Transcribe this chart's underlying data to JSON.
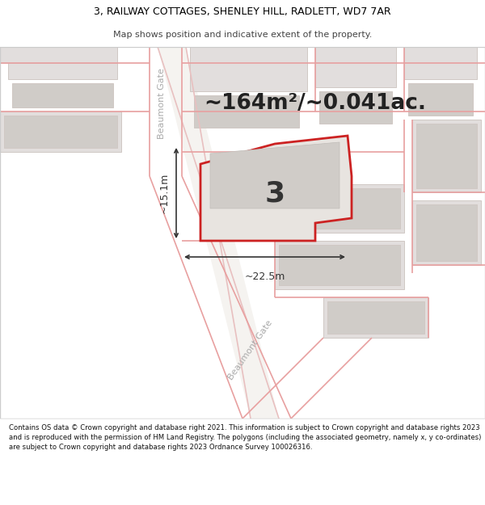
{
  "title_line1": "3, RAILWAY COTTAGES, SHENLEY HILL, RADLETT, WD7 7AR",
  "title_line2": "Map shows position and indicative extent of the property.",
  "area_text": "~164m²/~0.041ac.",
  "number_label": "3",
  "dim_width": "~22.5m",
  "dim_height": "~15.1m",
  "footer": "Contains OS data © Crown copyright and database right 2021. This information is subject to Crown copyright and database rights 2023 and is reproduced with the permission of HM Land Registry. The polygons (including the associated geometry, namely x, y co-ordinates) are subject to Crown copyright and database rights 2023 Ordnance Survey 100026316.",
  "bg_color": "#ffffff",
  "map_bg": "#f0eeea",
  "road_outline_color": "#e8c8c8",
  "road_fill_color": "#f5f5f5",
  "plot_outline_color": "#e07070",
  "plot_fill_color": "#e8e4e0",
  "building_fill": "#d8d4d0",
  "highlight_red": "#cc2222",
  "street_label_color": "#aaaaaa",
  "street_name": "Beaumont Gate",
  "dim_color": "#333333",
  "text_color": "#333333"
}
